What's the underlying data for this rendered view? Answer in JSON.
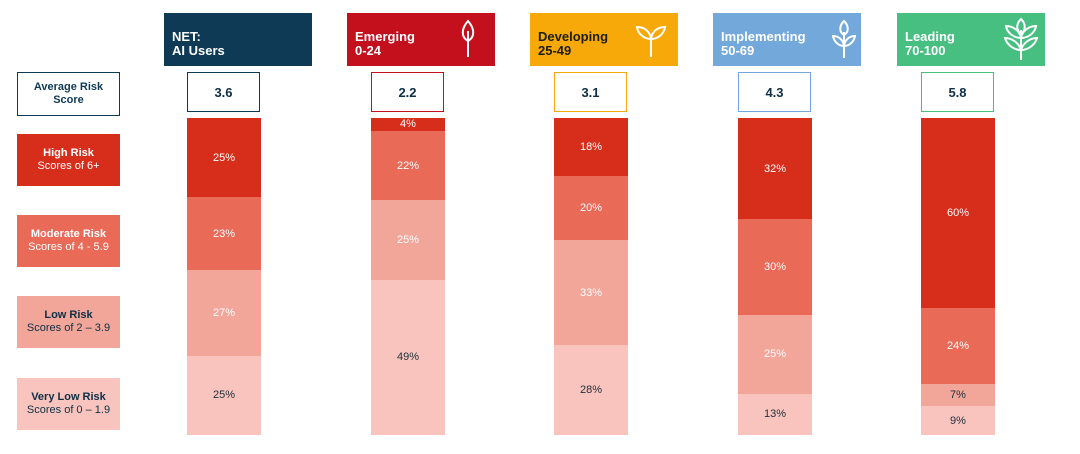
{
  "row_labels": {
    "average": {
      "title": "Average Risk",
      "sub": "Score"
    },
    "high": {
      "title": "High Risk",
      "sub": "Scores of 6+"
    },
    "moderate": {
      "title": "Moderate Risk",
      "sub": "Scores of 4 - 5.9"
    },
    "low": {
      "title": "Low Risk",
      "sub": "Scores of 2 – 3.9"
    },
    "very_low": {
      "title": "Very Low Risk",
      "sub": "Scores of 0 – 1.9"
    }
  },
  "colors": {
    "high": "#d62e1b",
    "moderate": "#ea6a58",
    "low": "#f2a599",
    "very_low": "#f8c4bd",
    "net": "#0e3a56",
    "emerging": "#c3101c",
    "developing": "#f7a90a",
    "implementing": "#73a8da",
    "leading": "#47bf80"
  },
  "chart_data": {
    "type": "bar",
    "stacked": true,
    "percent": true,
    "categories": [
      "NET: AI Users",
      "Emerging 0-24",
      "Developing 25-49",
      "Implementing 50-69",
      "Leading 70-100"
    ],
    "headers": [
      {
        "line1": "NET:",
        "line2": "AI Users",
        "icon": "none"
      },
      {
        "line1": "Emerging",
        "line2": "0-24",
        "icon": "seedling-icon"
      },
      {
        "line1": "Developing",
        "line2": "25-49",
        "icon": "sprout-icon"
      },
      {
        "line1": "Implementing",
        "line2": "50-69",
        "icon": "young-plant-icon"
      },
      {
        "line1": "Leading",
        "line2": "70-100",
        "icon": "plant-icon"
      }
    ],
    "average_risk_score": [
      "3.6",
      "2.2",
      "3.1",
      "4.3",
      "5.8"
    ],
    "series": [
      {
        "name": "High Risk",
        "values": [
          25,
          4,
          18,
          32,
          60
        ]
      },
      {
        "name": "Moderate Risk",
        "values": [
          23,
          22,
          20,
          30,
          24
        ]
      },
      {
        "name": "Low Risk",
        "values": [
          27,
          25,
          33,
          25,
          7
        ]
      },
      {
        "name": "Very Low Risk",
        "values": [
          25,
          49,
          28,
          13,
          9
        ]
      }
    ],
    "value_suffix": "%"
  }
}
